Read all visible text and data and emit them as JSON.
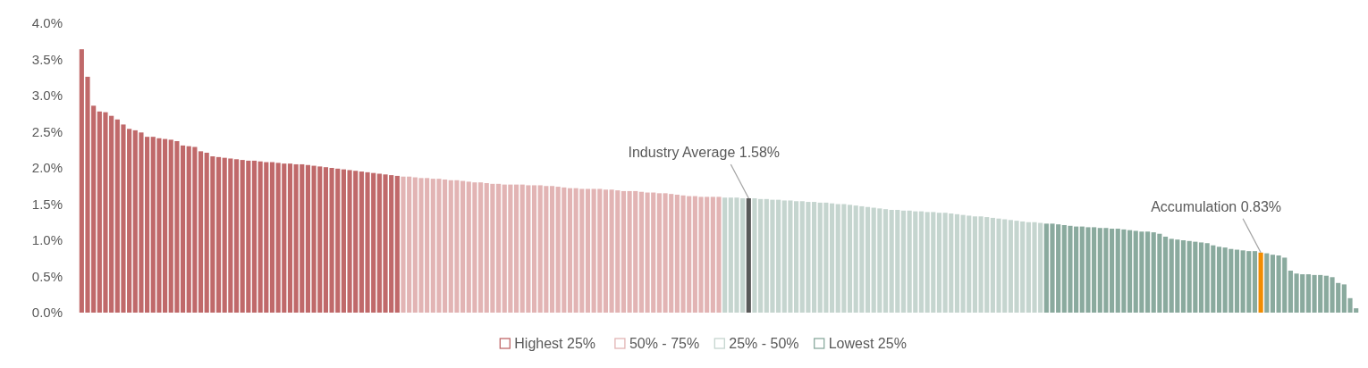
{
  "chart_data": {
    "type": "bar",
    "categories": [
      null,
      null,
      null,
      null,
      null,
      null,
      null,
      null,
      null,
      null,
      null,
      null,
      null,
      null,
      null,
      null,
      null,
      null,
      null,
      null,
      null,
      null,
      null,
      null,
      null,
      null,
      null,
      null,
      null,
      null,
      null,
      null,
      null,
      null,
      null,
      null,
      null,
      null,
      null,
      null,
      null,
      null,
      null,
      null,
      null,
      null,
      null,
      null,
      null,
      null,
      null,
      null,
      null,
      null,
      null,
      null,
      null,
      null,
      null,
      null,
      null,
      null,
      null,
      null,
      null,
      null,
      null,
      null,
      null,
      null,
      null,
      null,
      null,
      null,
      null,
      null,
      null,
      null,
      null,
      null,
      null,
      null,
      null,
      null,
      null,
      null,
      null,
      null,
      null,
      null,
      null,
      null,
      null,
      null,
      null,
      null,
      null,
      null,
      null,
      null,
      null,
      null,
      null,
      null,
      null,
      null,
      null,
      null,
      null,
      null,
      null,
      null,
      null,
      null,
      null,
      null,
      null,
      null,
      null,
      null,
      null,
      null,
      null,
      null,
      null,
      null,
      null,
      null,
      null,
      null,
      null,
      null,
      null,
      null,
      null,
      null,
      null,
      null,
      null,
      null,
      null,
      null,
      null,
      null,
      null,
      null,
      null,
      null,
      null,
      null,
      null,
      null,
      null,
      null,
      null,
      null,
      null,
      null,
      null,
      null,
      null,
      null,
      null,
      null,
      null,
      null,
      null,
      null,
      null,
      null,
      null,
      null,
      null,
      null,
      null,
      null,
      null,
      null,
      null,
      null,
      null,
      null,
      null,
      null,
      null,
      null,
      null,
      null,
      null,
      null,
      null,
      null,
      null,
      null,
      null,
      null,
      null,
      null,
      null,
      null,
      null,
      null,
      null,
      null,
      null,
      null,
      null,
      null,
      null,
      null,
      null,
      null,
      null,
      null,
      null
    ],
    "values": [
      3.64,
      3.26,
      2.86,
      2.78,
      2.77,
      2.72,
      2.67,
      2.6,
      2.54,
      2.52,
      2.49,
      2.43,
      2.43,
      2.41,
      2.4,
      2.39,
      2.37,
      2.31,
      2.3,
      2.29,
      2.23,
      2.21,
      2.16,
      2.15,
      2.14,
      2.13,
      2.12,
      2.11,
      2.1,
      2.1,
      2.09,
      2.08,
      2.08,
      2.07,
      2.06,
      2.06,
      2.05,
      2.05,
      2.04,
      2.03,
      2.02,
      2.01,
      2.0,
      1.99,
      1.98,
      1.97,
      1.96,
      1.95,
      1.94,
      1.93,
      1.92,
      1.91,
      1.9,
      1.89,
      1.88,
      1.88,
      1.87,
      1.86,
      1.86,
      1.85,
      1.85,
      1.84,
      1.83,
      1.83,
      1.82,
      1.81,
      1.8,
      1.8,
      1.79,
      1.78,
      1.78,
      1.77,
      1.77,
      1.77,
      1.77,
      1.76,
      1.76,
      1.76,
      1.75,
      1.75,
      1.74,
      1.73,
      1.72,
      1.72,
      1.71,
      1.71,
      1.71,
      1.71,
      1.7,
      1.7,
      1.69,
      1.68,
      1.68,
      1.68,
      1.67,
      1.66,
      1.66,
      1.65,
      1.65,
      1.64,
      1.63,
      1.62,
      1.61,
      1.61,
      1.6,
      1.6,
      1.6,
      1.6,
      1.59,
      1.59,
      1.59,
      1.58,
      1.58,
      1.58,
      1.57,
      1.57,
      1.56,
      1.56,
      1.55,
      1.55,
      1.54,
      1.54,
      1.53,
      1.53,
      1.52,
      1.52,
      1.51,
      1.5,
      1.5,
      1.49,
      1.48,
      1.47,
      1.46,
      1.45,
      1.44,
      1.43,
      1.42,
      1.42,
      1.41,
      1.41,
      1.4,
      1.4,
      1.39,
      1.39,
      1.38,
      1.38,
      1.37,
      1.36,
      1.35,
      1.34,
      1.33,
      1.33,
      1.32,
      1.31,
      1.3,
      1.29,
      1.28,
      1.27,
      1.26,
      1.25,
      1.25,
      1.24,
      1.23,
      1.23,
      1.22,
      1.21,
      1.2,
      1.19,
      1.19,
      1.18,
      1.18,
      1.17,
      1.17,
      1.16,
      1.16,
      1.15,
      1.14,
      1.13,
      1.12,
      1.12,
      1.11,
      1.09,
      1.05,
      1.02,
      1.01,
      1.0,
      0.99,
      0.98,
      0.97,
      0.96,
      0.93,
      0.91,
      0.9,
      0.88,
      0.87,
      0.86,
      0.85,
      0.85,
      0.83,
      0.82,
      0.8,
      0.79,
      0.76,
      0.58,
      0.54,
      0.53,
      0.53,
      0.52,
      0.52,
      0.51,
      0.49,
      0.41,
      0.39,
      0.2,
      0.06
    ],
    "colors": [
      "#c0696a",
      "#c0696a",
      "#c0696a",
      "#c0696a",
      "#c0696a",
      "#c0696a",
      "#c0696a",
      "#c0696a",
      "#c0696a",
      "#c0696a",
      "#c0696a",
      "#c0696a",
      "#c0696a",
      "#c0696a",
      "#c0696a",
      "#c0696a",
      "#c0696a",
      "#c0696a",
      "#c0696a",
      "#c0696a",
      "#c0696a",
      "#c0696a",
      "#c0696a",
      "#c0696a",
      "#c0696a",
      "#c0696a",
      "#c0696a",
      "#c0696a",
      "#c0696a",
      "#c0696a",
      "#c0696a",
      "#c0696a",
      "#c0696a",
      "#c0696a",
      "#c0696a",
      "#c0696a",
      "#c0696a",
      "#c0696a",
      "#c0696a",
      "#c0696a",
      "#c0696a",
      "#c0696a",
      "#c0696a",
      "#c0696a",
      "#c0696a",
      "#c0696a",
      "#c0696a",
      "#c0696a",
      "#c0696a",
      "#c0696a",
      "#c0696a",
      "#c0696a",
      "#c0696a",
      "#c0696a",
      "#e2b4b4",
      "#e2b4b4",
      "#e2b4b4",
      "#e2b4b4",
      "#e2b4b4",
      "#e2b4b4",
      "#e2b4b4",
      "#e2b4b4",
      "#e2b4b4",
      "#e2b4b4",
      "#e2b4b4",
      "#e2b4b4",
      "#e2b4b4",
      "#e2b4b4",
      "#e2b4b4",
      "#e2b4b4",
      "#e2b4b4",
      "#e2b4b4",
      "#e2b4b4",
      "#e2b4b4",
      "#e2b4b4",
      "#e2b4b4",
      "#e2b4b4",
      "#e2b4b4",
      "#e2b4b4",
      "#e2b4b4",
      "#e2b4b4",
      "#e2b4b4",
      "#e2b4b4",
      "#e2b4b4",
      "#e2b4b4",
      "#e2b4b4",
      "#e2b4b4",
      "#e2b4b4",
      "#e2b4b4",
      "#e2b4b4",
      "#e2b4b4",
      "#e2b4b4",
      "#e2b4b4",
      "#e2b4b4",
      "#e2b4b4",
      "#e2b4b4",
      "#e2b4b4",
      "#e2b4b4",
      "#e2b4b4",
      "#e2b4b4",
      "#e2b4b4",
      "#e2b4b4",
      "#e2b4b4",
      "#e2b4b4",
      "#e2b4b4",
      "#e2b4b4",
      "#e2b4b4",
      "#e2b4b4",
      "#c5d5cf",
      "#c5d5cf",
      "#c5d5cf",
      "#c5d5cf",
      "#595959",
      "#c5d5cf",
      "#c5d5cf",
      "#c5d5cf",
      "#c5d5cf",
      "#c5d5cf",
      "#c5d5cf",
      "#c5d5cf",
      "#c5d5cf",
      "#c5d5cf",
      "#c5d5cf",
      "#c5d5cf",
      "#c5d5cf",
      "#c5d5cf",
      "#c5d5cf",
      "#c5d5cf",
      "#c5d5cf",
      "#c5d5cf",
      "#c5d5cf",
      "#c5d5cf",
      "#c5d5cf",
      "#c5d5cf",
      "#c5d5cf",
      "#c5d5cf",
      "#c5d5cf",
      "#c5d5cf",
      "#c5d5cf",
      "#c5d5cf",
      "#c5d5cf",
      "#c5d5cf",
      "#c5d5cf",
      "#c5d5cf",
      "#c5d5cf",
      "#c5d5cf",
      "#c5d5cf",
      "#c5d5cf",
      "#c5d5cf",
      "#c5d5cf",
      "#c5d5cf",
      "#c5d5cf",
      "#c5d5cf",
      "#c5d5cf",
      "#c5d5cf",
      "#c5d5cf",
      "#c5d5cf",
      "#c5d5cf",
      "#c5d5cf",
      "#c5d5cf",
      "#c5d5cf",
      "#c5d5cf",
      "#8aaa9e",
      "#8aaa9e",
      "#8aaa9e",
      "#8aaa9e",
      "#8aaa9e",
      "#8aaa9e",
      "#8aaa9e",
      "#8aaa9e",
      "#8aaa9e",
      "#8aaa9e",
      "#8aaa9e",
      "#8aaa9e",
      "#8aaa9e",
      "#8aaa9e",
      "#8aaa9e",
      "#8aaa9e",
      "#8aaa9e",
      "#8aaa9e",
      "#8aaa9e",
      "#8aaa9e",
      "#8aaa9e",
      "#8aaa9e",
      "#8aaa9e",
      "#8aaa9e",
      "#8aaa9e",
      "#8aaa9e",
      "#8aaa9e",
      "#8aaa9e",
      "#8aaa9e",
      "#8aaa9e",
      "#8aaa9e",
      "#8aaa9e",
      "#8aaa9e",
      "#8aaa9e",
      "#8aaa9e",
      "#8aaa9e",
      "#f28c00",
      "#8aaa9e",
      "#8aaa9e",
      "#8aaa9e",
      "#8aaa9e",
      "#8aaa9e",
      "#8aaa9e",
      "#8aaa9e",
      "#8aaa9e",
      "#8aaa9e",
      "#8aaa9e",
      "#8aaa9e",
      "#8aaa9e",
      "#8aaa9e",
      "#8aaa9e",
      "#8aaa9e",
      "#8aaa9e"
    ],
    "ylim": [
      0,
      4
    ],
    "yticks": [
      {
        "value": 0,
        "label": "0.0%"
      },
      {
        "value": 0.5,
        "label": "0.5%"
      },
      {
        "value": 1,
        "label": "1.0%"
      },
      {
        "value": 1.5,
        "label": "1.5%"
      },
      {
        "value": 2,
        "label": "2.0%"
      },
      {
        "value": 2.5,
        "label": "2.5%"
      },
      {
        "value": 3,
        "label": "3.0%"
      },
      {
        "value": 3.5,
        "label": "3.5%"
      },
      {
        "value": 4,
        "label": "4.0%"
      }
    ],
    "annotations": [
      {
        "text": "Industry Average 1.58%",
        "y": 1.58
      },
      {
        "text": "Accumulation 0.83%",
        "y": 0.83
      },
      "Highest 25%",
      "50% - 75%",
      "25% - 50%",
      "Lowest 25%"
    ]
  }
}
